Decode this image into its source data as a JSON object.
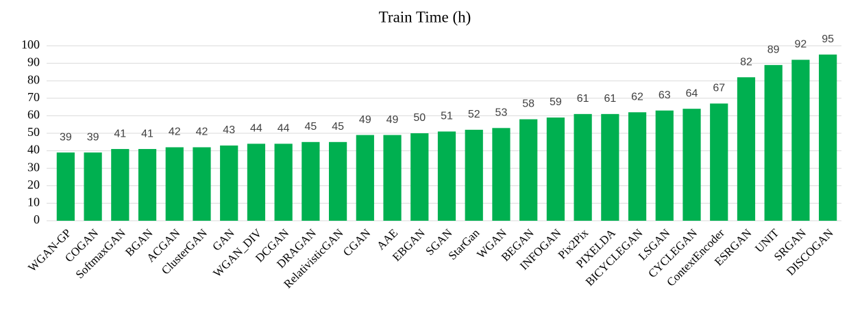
{
  "chart_data": {
    "type": "bar",
    "title": "Train Time (h)",
    "categories": [
      "WGAN-GP",
      "COGAN",
      "SoftmaxGAN",
      "BGAN",
      "ACGAN",
      "ClusterGAN",
      "GAN",
      "WGAN_DIV",
      "DCGAN",
      "DRAGAN",
      "RelativisticGAN",
      "CGAN",
      "AAE",
      "EBGAN",
      "SGAN",
      "StarGan",
      "WGAN",
      "BEGAN",
      "INFOGAN",
      "Pix2Pix",
      "PIXELDA",
      "BICYCLEGAN",
      "LSGAN",
      "CYCLEGAN",
      "ContextEncoder",
      "ESRGAN",
      "UNIT",
      "SRGAN",
      "DISCOGAN"
    ],
    "values": [
      39,
      39,
      41,
      41,
      42,
      42,
      43,
      44,
      44,
      45,
      45,
      49,
      49,
      50,
      51,
      52,
      53,
      58,
      59,
      61,
      61,
      62,
      63,
      64,
      67,
      82,
      89,
      92,
      95
    ],
    "color": "#00b050",
    "ylim": [
      0,
      100
    ],
    "yticks": [
      0,
      10,
      20,
      30,
      40,
      50,
      60,
      70,
      80,
      90,
      100
    ],
    "grid": true
  }
}
